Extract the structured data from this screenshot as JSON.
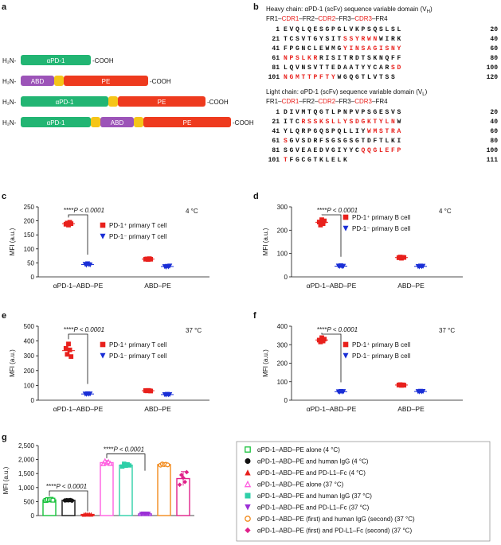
{
  "panel_labels": [
    "a",
    "b",
    "c",
    "d",
    "e",
    "f",
    "g"
  ],
  "colors": {
    "apd1": "#22b573",
    "abd": "#9c54b8",
    "linker": "#f5c518",
    "pe": "#ee3a1e",
    "red": "#e8201c",
    "blue": "#1a2fd6",
    "cdr": "#e8201c"
  },
  "panel_a": {
    "constructs": [
      {
        "name": "construct-1",
        "nterm": "H₂N-",
        "cterm": "-COOH",
        "segments": [
          {
            "kind": "apd1",
            "label": "αPD-1"
          }
        ]
      },
      {
        "name": "construct-2",
        "nterm": "H₂N-",
        "cterm": "-COOH",
        "segments": [
          {
            "kind": "abd",
            "label": "ABD"
          },
          {
            "kind": "linker",
            "label": ""
          },
          {
            "kind": "pe",
            "label": "PE"
          }
        ]
      },
      {
        "name": "construct-3",
        "nterm": "H₂N-",
        "cterm": "-COOH",
        "segments": [
          {
            "kind": "apd1",
            "label": "αPD-1"
          },
          {
            "kind": "linker",
            "label": ""
          },
          {
            "kind": "pe",
            "label": "PE"
          }
        ]
      },
      {
        "name": "construct-4",
        "nterm": "H₂N-",
        "cterm": "-COOH",
        "segments": [
          {
            "kind": "apd1",
            "label": "αPD-1"
          },
          {
            "kind": "linker",
            "label": ""
          },
          {
            "kind": "abd",
            "label": "ABD"
          },
          {
            "kind": "linker",
            "label": ""
          },
          {
            "kind": "pe",
            "label": "PE"
          }
        ]
      }
    ]
  },
  "panel_b": {
    "heavy": {
      "title": "Heavy chain: αPD-1 (scFv) sequence variable domain (V",
      "title_sub": "H",
      "legend": [
        [
          "FR1",
          "k"
        ],
        [
          "–",
          ""
        ],
        [
          "CDR1",
          "r"
        ],
        [
          "–",
          ""
        ],
        [
          "FR2",
          "k"
        ],
        [
          "–",
          ""
        ],
        [
          "CDR2",
          "r"
        ],
        [
          "–",
          ""
        ],
        [
          "FR3",
          "k"
        ],
        [
          "–",
          ""
        ],
        [
          "CDR3",
          "r"
        ],
        [
          "–",
          ""
        ],
        [
          "FR4",
          "k"
        ]
      ],
      "rows": [
        {
          "start": "1",
          "end": "20",
          "parts": [
            [
              "EVQLQESGPGLVKPSQSLSL",
              "k"
            ]
          ]
        },
        {
          "start": "21",
          "end": "40",
          "parts": [
            [
              "TCSVTGYSIT",
              "k"
            ],
            [
              "SSYRWN",
              "r"
            ],
            [
              "WIRK",
              "k"
            ]
          ]
        },
        {
          "start": "41",
          "end": "60",
          "parts": [
            [
              "FPGNCLEWMG",
              "k"
            ],
            [
              "YINSAGISNY",
              "r"
            ]
          ]
        },
        {
          "start": "61",
          "end": "80",
          "parts": [
            [
              "NPSLKR",
              "r"
            ],
            [
              "RISITRDTSKNQFF",
              "k"
            ]
          ]
        },
        {
          "start": "81",
          "end": "100",
          "parts": [
            [
              "LQVNSVTTEDAATYYCAR",
              "k"
            ],
            [
              "SD",
              "r"
            ]
          ]
        },
        {
          "start": "101",
          "end": "120",
          "parts": [
            [
              "NGMTTPFTY",
              "r"
            ],
            [
              "WGQGTLVTSS",
              "k"
            ]
          ]
        }
      ]
    },
    "light": {
      "title": "Light chain: αPD-1 (scFv) sequence variable domain (V",
      "title_sub": "L",
      "legend": [
        [
          "FR1",
          "k"
        ],
        [
          "–",
          ""
        ],
        [
          "CDR1",
          "r"
        ],
        [
          "–",
          ""
        ],
        [
          "FR2",
          "k"
        ],
        [
          "–",
          ""
        ],
        [
          "CDR2",
          "r"
        ],
        [
          "–",
          ""
        ],
        [
          "FR3",
          "k"
        ],
        [
          "–",
          ""
        ],
        [
          "CDR3",
          "r"
        ],
        [
          "–",
          ""
        ],
        [
          "FR4",
          "k"
        ]
      ],
      "rows": [
        {
          "start": "1",
          "end": "20",
          "parts": [
            [
              "DIVMTQGTLPNPVPSGESVS",
              "k"
            ]
          ]
        },
        {
          "start": "21",
          "end": "40",
          "parts": [
            [
              "ITC",
              "k"
            ],
            [
              "RSSKSLLYSDGKTYLN",
              "r"
            ],
            [
              "W",
              "k"
            ]
          ]
        },
        {
          "start": "41",
          "end": "60",
          "parts": [
            [
              "YLQRPGQSPQLLIY",
              "k"
            ],
            [
              "WMSTRA",
              "r"
            ]
          ]
        },
        {
          "start": "61",
          "end": "80",
          "parts": [
            [
              "S",
              "r"
            ],
            [
              "GVSDRFSGSGSGTDFTLKI",
              "k"
            ]
          ]
        },
        {
          "start": "81",
          "end": "100",
          "parts": [
            [
              "SGVEAEDVGIYYC",
              "k"
            ],
            [
              "QQGLEFP",
              "r"
            ]
          ]
        },
        {
          "start": "101",
          "end": "111",
          "parts": [
            [
              "T",
              "r"
            ],
            [
              "FGCGTKLELK",
              "k"
            ]
          ]
        }
      ]
    }
  },
  "chart_data": [
    {
      "id": "c",
      "type": "scatter",
      "ylabel": "MFI (a.u.)",
      "ylim": [
        0,
        250
      ],
      "yticks": [
        "0",
        "50",
        "100",
        "150",
        "200",
        "250"
      ],
      "temperature": "4 °C",
      "categories": [
        "αPD-1–ABD–PE",
        "ABD–PE"
      ],
      "significance": "****P < 0.0001",
      "series": [
        {
          "name": "PD-1⁺ primary T cell",
          "color": "#e8201c",
          "marker": "square",
          "values": [
            [
              188,
              192,
              185,
              195,
              190
            ],
            [
              63,
              64,
              62,
              65,
              63
            ]
          ]
        },
        {
          "name": "PD-1⁻ primary T cell",
          "color": "#1a2fd6",
          "marker": "triangle-down",
          "values": [
            [
              45,
              42,
              47,
              44,
              43
            ],
            [
              37,
              35,
              38,
              36,
              39
            ]
          ]
        }
      ]
    },
    {
      "id": "d",
      "type": "scatter",
      "ylabel": "MFI (a.u.)",
      "ylim": [
        0,
        300
      ],
      "yticks": [
        "0",
        "100",
        "200",
        "300"
      ],
      "temperature": "4 °C",
      "categories": [
        "αPD-1–ABD–PE",
        "ABD–PE"
      ],
      "significance": "****P < 0.0001",
      "series": [
        {
          "name": "PD-1⁺ primary B cell",
          "color": "#e8201c",
          "marker": "square",
          "values": [
            [
              235,
              222,
              245,
              228,
              240
            ],
            [
              82,
              85,
              80,
              84,
              83
            ]
          ]
        },
        {
          "name": "PD-1⁻ primary B cell",
          "color": "#1a2fd6",
          "marker": "triangle-down",
          "values": [
            [
              47,
              45,
              48,
              44,
              46
            ],
            [
              45,
              43,
              47,
              44,
              46
            ]
          ]
        }
      ]
    },
    {
      "id": "e",
      "type": "scatter",
      "ylabel": "MFI (a.u.)",
      "ylim": [
        0,
        500
      ],
      "yticks": [
        "0",
        "100",
        "200",
        "300",
        "400",
        "500"
      ],
      "temperature": "37 °C",
      "categories": [
        "αPD-1–ABD–PE",
        "ABD–PE"
      ],
      "significance": "****P < 0.0001",
      "series": [
        {
          "name": "PD-1⁺ primary T cell",
          "color": "#e8201c",
          "marker": "square",
          "values": [
            [
              350,
              310,
              380,
              340,
              295
            ],
            [
              65,
              63,
              66,
              64,
              62
            ]
          ]
        },
        {
          "name": "PD-1⁻ primary T cell",
          "color": "#1a2fd6",
          "marker": "triangle-down",
          "values": [
            [
              42,
              40,
              44,
              41,
              43
            ],
            [
              38,
              36,
              40,
              37,
              39
            ]
          ]
        }
      ]
    },
    {
      "id": "f",
      "type": "scatter",
      "ylabel": "MFI (a.u.)",
      "ylim": [
        0,
        400
      ],
      "yticks": [
        "0",
        "100",
        "200",
        "300",
        "400"
      ],
      "temperature": "37 °C",
      "categories": [
        "αPD-1–ABD–PE",
        "ABD–PE"
      ],
      "significance": "****P < 0.0001",
      "series": [
        {
          "name": "PD-1⁺ primary B cell",
          "color": "#e8201c",
          "marker": "square",
          "values": [
            [
              325,
              315,
              338,
              320,
              330
            ],
            [
              82,
              84,
              80,
              83,
              81
            ]
          ]
        },
        {
          "name": "PD-1⁻ primary B cell",
          "color": "#1a2fd6",
          "marker": "triangle-down",
          "values": [
            [
              46,
              44,
              48,
              45,
              47
            ],
            [
              47,
              45,
              49,
              46,
              48
            ]
          ]
        }
      ]
    },
    {
      "id": "g",
      "type": "bar",
      "ylabel": "MFI (a.u.)",
      "ylim": [
        0,
        2500
      ],
      "yticks": [
        "0",
        "500",
        "1,000",
        "1,500",
        "2,000",
        "2,500"
      ],
      "significance": [
        "****P < 0.0001",
        "****P < 0.0001"
      ],
      "series": [
        {
          "name": "αPD-1–ABD–PE alone (4 °C)",
          "color": "#17c13a",
          "marker": "square-open",
          "mean": 560,
          "err": 30,
          "values": [
            540,
            570,
            560,
            580,
            550
          ],
          "hollow": true
        },
        {
          "name": "αPD-1–ABD–PE and human IgG (4 °C)",
          "color": "#111111",
          "marker": "circle",
          "mean": 545,
          "err": 20,
          "values": [
            540,
            550,
            545,
            555,
            535
          ],
          "hollow": true
        },
        {
          "name": "αPD-1–ABD–PE and PD-L1–Fc (4 °C)",
          "color": "#e8201c",
          "marker": "triangle-up",
          "mean": 40,
          "err": 10,
          "values": [
            35,
            45,
            40,
            42,
            38
          ],
          "hollow": true
        },
        {
          "name": "αPD-1–ABD–PE alone (37 °C)",
          "color": "#ff5fe0",
          "marker": "triangle-up-open",
          "mean": 1890,
          "err": 80,
          "values": [
            1850,
            1950,
            1880,
            1920,
            1860
          ],
          "hollow": true
        },
        {
          "name": "αPD-1–ABD–PE and human IgG (37 °C)",
          "color": "#2fcfa8",
          "marker": "square",
          "mean": 1800,
          "err": 90,
          "values": [
            1750,
            1850,
            1780,
            1830,
            1790
          ],
          "hollow": true
        },
        {
          "name": "αPD-1–ABD–PE and PD-L1–Fc (37 °C)",
          "color": "#9b2fd6",
          "marker": "triangle-down",
          "mean": 60,
          "err": 10,
          "values": [
            55,
            65,
            60,
            62,
            58
          ],
          "hollow": true
        },
        {
          "name": "αPD-1–ABD–PE (first) and human IgG (second) (37 °C)",
          "color": "#f28a1c",
          "marker": "circle-open",
          "mean": 1820,
          "err": 50,
          "values": [
            1800,
            1840,
            1820,
            1830,
            1810
          ],
          "hollow": true
        },
        {
          "name": "αPD-1–ABD–PE (first) and PD-L1–Fc (second) (37 °C)",
          "color": "#e0218a",
          "marker": "diamond",
          "mean": 1320,
          "err": 250,
          "values": [
            1100,
            1450,
            1350,
            1200,
            1550
          ],
          "hollow": true
        }
      ]
    }
  ]
}
